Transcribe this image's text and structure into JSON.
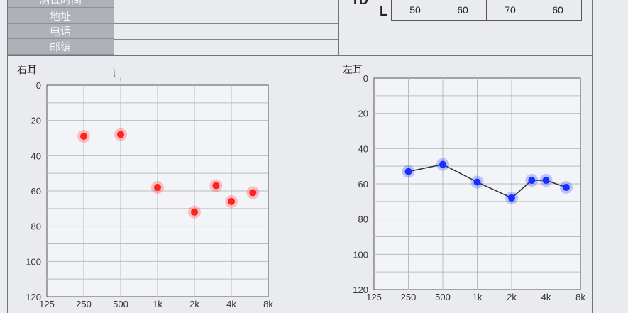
{
  "form": {
    "rows": [
      "测试时间",
      "地址",
      "电话",
      "邮编"
    ]
  },
  "td_table": {
    "label_td": "TD",
    "label_l": "L",
    "values": [
      "50",
      "60",
      "70",
      "60"
    ]
  },
  "right_ear": {
    "title": "右耳"
  },
  "left_ear": {
    "title": "左耳"
  },
  "chart_data": [
    {
      "type": "line",
      "title": "右耳",
      "x": [
        "250",
        "500",
        "1k",
        "2k",
        "3k",
        "4k",
        "6k"
      ],
      "series": [
        {
          "values": [
            29,
            28,
            58,
            72,
            57,
            66,
            61
          ],
          "color": "#ff2020",
          "connected": false
        }
      ],
      "x_ticks": [
        "125",
        "250",
        "500",
        "1k",
        "2k",
        "4k",
        "8k"
      ],
      "y_ticks": [
        "0",
        "20",
        "40",
        "60",
        "80",
        "100",
        "120"
      ],
      "ylim": [
        0,
        120
      ],
      "y_inverted": true,
      "grid": true
    },
    {
      "type": "line",
      "title": "左耳",
      "x": [
        "250",
        "500",
        "1k",
        "2k",
        "3k",
        "4k",
        "6k"
      ],
      "series": [
        {
          "values": [
            53,
            49,
            59,
            68,
            58,
            58,
            62
          ],
          "color": "#1830ff",
          "connected": true
        }
      ],
      "x_ticks": [
        "125",
        "250",
        "500",
        "1k",
        "2k",
        "4k",
        "8k"
      ],
      "y_ticks": [
        "0",
        "20",
        "40",
        "60",
        "80",
        "100",
        "120"
      ],
      "ylim": [
        0,
        120
      ],
      "y_inverted": true,
      "grid": true
    }
  ]
}
